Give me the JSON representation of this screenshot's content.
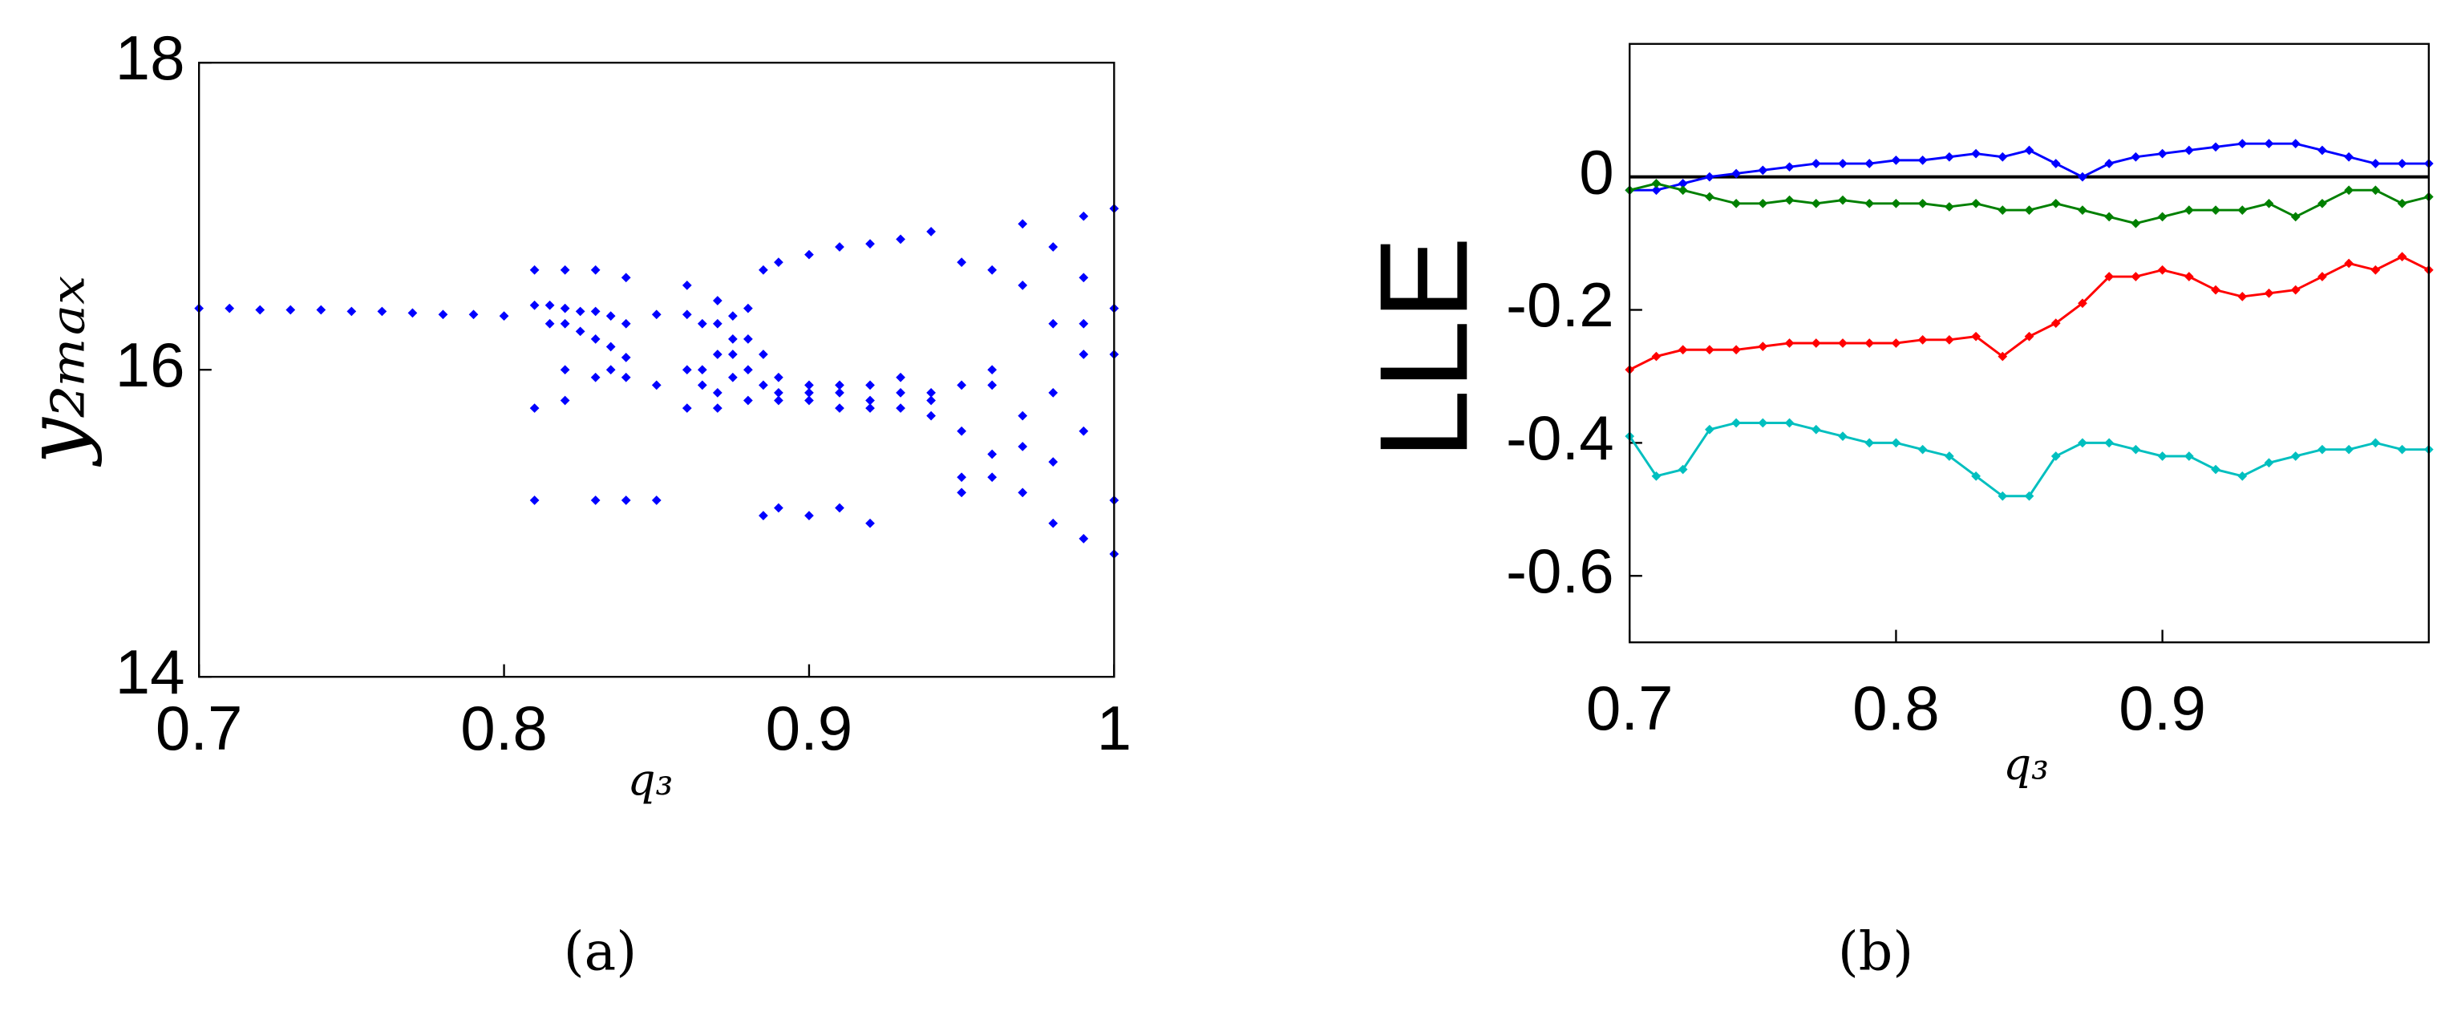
{
  "chart_data": [
    {
      "type": "scatter",
      "color": "#0000ff",
      "grid": false,
      "x_label": "q₃",
      "y_label": "y₂ₘₐₓ",
      "caption": "(a)",
      "xlim": [
        0.7,
        1
      ],
      "ylim": [
        14,
        18
      ],
      "xticks": [
        0.7,
        0.8,
        0.9,
        1
      ],
      "yticks": [
        14,
        16,
        18
      ],
      "x": [
        0.7,
        0.71,
        0.72,
        0.73,
        0.74,
        0.75,
        0.76,
        0.77,
        0.78,
        0.79,
        0.8,
        0.81,
        0.81,
        0.81,
        0.81,
        0.815,
        0.815,
        0.82,
        0.82,
        0.82,
        0.82,
        0.82,
        0.825,
        0.825,
        0.83,
        0.83,
        0.83,
        0.83,
        0.83,
        0.835,
        0.835,
        0.835,
        0.84,
        0.84,
        0.84,
        0.84,
        0.84,
        0.85,
        0.85,
        0.85,
        0.86,
        0.86,
        0.86,
        0.86,
        0.865,
        0.865,
        0.865,
        0.87,
        0.87,
        0.87,
        0.87,
        0.87,
        0.875,
        0.875,
        0.875,
        0.875,
        0.88,
        0.88,
        0.88,
        0.88,
        0.885,
        0.885,
        0.885,
        0.885,
        0.89,
        0.89,
        0.89,
        0.89,
        0.89,
        0.9,
        0.9,
        0.9,
        0.9,
        0.9,
        0.91,
        0.91,
        0.91,
        0.91,
        0.91,
        0.92,
        0.92,
        0.92,
        0.92,
        0.92,
        0.93,
        0.93,
        0.93,
        0.93,
        0.94,
        0.94,
        0.94,
        0.94,
        0.95,
        0.95,
        0.95,
        0.95,
        0.95,
        0.96,
        0.96,
        0.96,
        0.96,
        0.96,
        0.97,
        0.97,
        0.97,
        0.97,
        0.97,
        0.98,
        0.98,
        0.98,
        0.98,
        0.98,
        0.99,
        0.99,
        0.99,
        0.99,
        0.99,
        0.99,
        1.0,
        1.0,
        1.0,
        1.0,
        1.0
      ],
      "values": [
        16.4,
        16.4,
        16.39,
        16.39,
        16.39,
        16.38,
        16.38,
        16.37,
        16.36,
        16.36,
        16.35,
        16.65,
        16.42,
        15.75,
        15.15,
        16.42,
        16.3,
        16.65,
        16.4,
        16.3,
        16.0,
        15.8,
        16.38,
        16.25,
        16.65,
        16.38,
        16.2,
        15.95,
        15.15,
        16.35,
        16.15,
        16.0,
        16.6,
        16.3,
        16.08,
        15.95,
        15.15,
        16.36,
        15.9,
        15.15,
        16.36,
        16.0,
        15.75,
        16.55,
        16.3,
        16.0,
        15.9,
        16.45,
        16.3,
        16.1,
        15.85,
        15.75,
        16.35,
        16.1,
        16.2,
        15.95,
        16.4,
        16.2,
        16.0,
        15.8,
        16.1,
        15.9,
        15.05,
        16.65,
        15.95,
        15.85,
        15.8,
        15.1,
        16.7,
        15.9,
        15.8,
        15.05,
        16.75,
        15.85,
        15.9,
        15.75,
        15.85,
        16.8,
        15.1,
        15.8,
        15.9,
        15.75,
        16.82,
        15.0,
        15.85,
        15.75,
        15.95,
        16.85,
        15.8,
        15.85,
        15.7,
        16.9,
        15.3,
        15.6,
        16.7,
        15.2,
        15.9,
        15.3,
        15.45,
        16.65,
        15.9,
        16.0,
        15.5,
        15.2,
        16.55,
        16.95,
        15.7,
        15.85,
        15.0,
        16.3,
        16.8,
        15.4,
        15.6,
        16.1,
        14.9,
        16.6,
        16.3,
        17.0,
        16.4,
        14.8,
        16.1,
        15.15,
        17.05
      ]
    },
    {
      "type": "line",
      "grid": false,
      "x_label": "q₃",
      "y_label": "LLE",
      "caption": "(b)",
      "xlim": [
        0.7,
        1.0
      ],
      "ylim": [
        -0.7,
        0.2
      ],
      "xticks": [
        0.7,
        0.8,
        0.9
      ],
      "yticks": [
        -0.6,
        -0.4,
        -0.2,
        0
      ],
      "reference_line": 0,
      "x": [
        0.7,
        0.71,
        0.72,
        0.73,
        0.74,
        0.75,
        0.76,
        0.77,
        0.78,
        0.79,
        0.8,
        0.81,
        0.82,
        0.83,
        0.84,
        0.85,
        0.86,
        0.87,
        0.88,
        0.89,
        0.9,
        0.91,
        0.92,
        0.93,
        0.94,
        0.95,
        0.96,
        0.97,
        0.98,
        0.99,
        1.0
      ],
      "series": [
        {
          "color": "#0000ff",
          "values": [
            -0.02,
            -0.02,
            -0.01,
            0,
            0.005,
            0.01,
            0.015,
            0.02,
            0.02,
            0.02,
            0.025,
            0.025,
            0.03,
            0.035,
            0.03,
            0.04,
            0.02,
            0.0,
            0.02,
            0.03,
            0.035,
            0.04,
            0.045,
            0.05,
            0.05,
            0.05,
            0.04,
            0.03,
            0.02,
            0.02,
            0.02
          ]
        },
        {
          "color": "#008000",
          "values": [
            -0.02,
            -0.01,
            -0.02,
            -0.03,
            -0.04,
            -0.04,
            -0.035,
            -0.04,
            -0.035,
            -0.04,
            -0.04,
            -0.04,
            -0.045,
            -0.04,
            -0.05,
            -0.05,
            -0.04,
            -0.05,
            -0.06,
            -0.07,
            -0.06,
            -0.05,
            -0.05,
            -0.05,
            -0.04,
            -0.06,
            -0.04,
            -0.02,
            -0.02,
            -0.04,
            -0.03
          ]
        },
        {
          "color": "#ff0000",
          "values": [
            -0.29,
            -0.27,
            -0.26,
            -0.26,
            -0.26,
            -0.255,
            -0.25,
            -0.25,
            -0.25,
            -0.25,
            -0.25,
            -0.245,
            -0.245,
            -0.24,
            -0.27,
            -0.24,
            -0.22,
            -0.19,
            -0.15,
            -0.15,
            -0.14,
            -0.15,
            -0.17,
            -0.18,
            -0.175,
            -0.17,
            -0.15,
            -0.13,
            -0.14,
            -0.12,
            -0.14
          ]
        },
        {
          "color": "#00bfbf",
          "values": [
            -0.39,
            -0.45,
            -0.44,
            -0.38,
            -0.37,
            -0.37,
            -0.37,
            -0.38,
            -0.39,
            -0.4,
            -0.4,
            -0.41,
            -0.42,
            -0.45,
            -0.48,
            -0.48,
            -0.42,
            -0.4,
            -0.4,
            -0.41,
            -0.42,
            -0.42,
            -0.44,
            -0.45,
            -0.43,
            -0.42,
            -0.41,
            -0.41,
            -0.4,
            -0.41,
            -0.41
          ]
        }
      ]
    }
  ]
}
